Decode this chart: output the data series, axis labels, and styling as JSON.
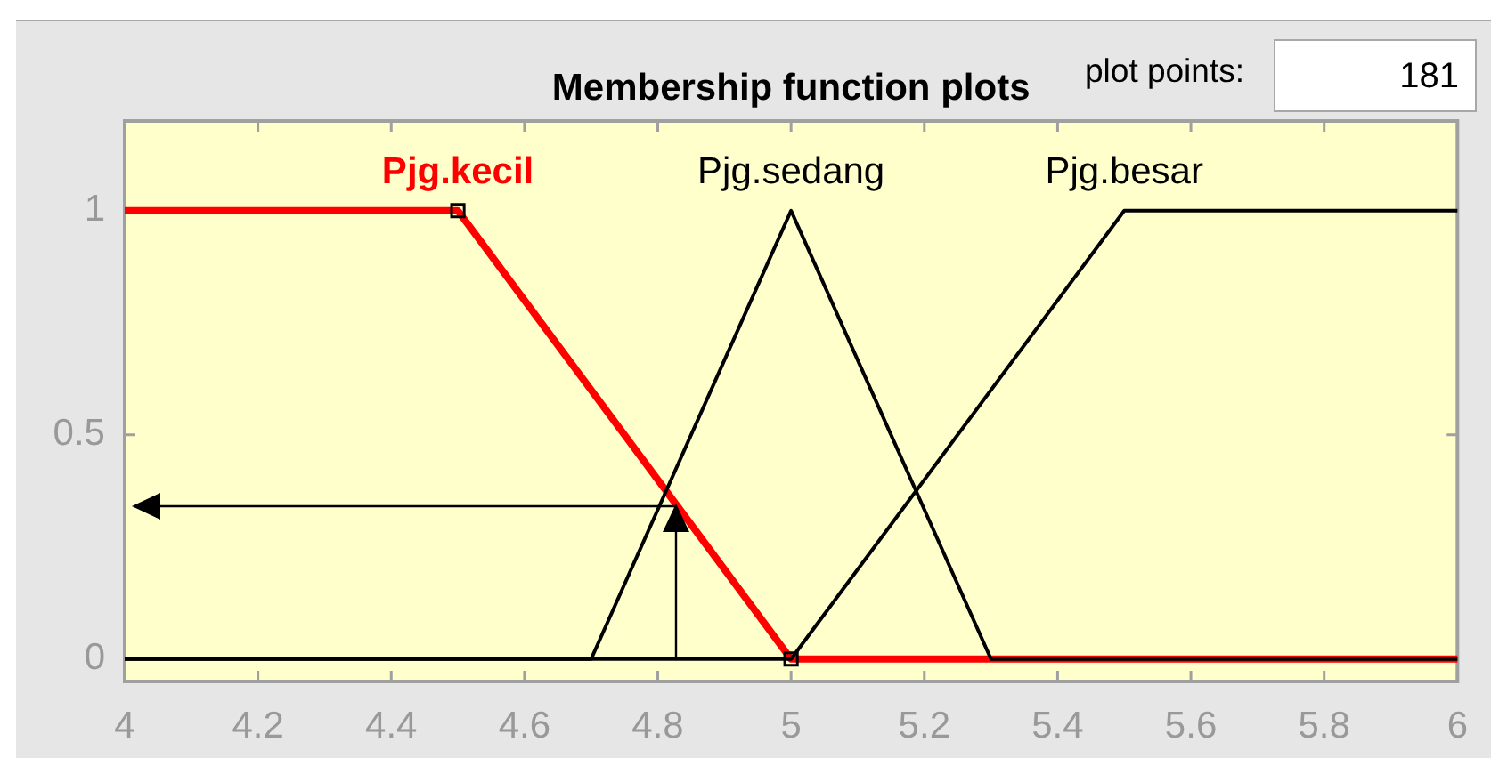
{
  "chart_data": {
    "type": "line",
    "title": "Membership function plots",
    "annotations": [
      "plot points:",
      "181"
    ],
    "xlim": [
      4,
      6
    ],
    "xticks": [
      4,
      4.2,
      4.4,
      4.6,
      4.8,
      5,
      5.2,
      5.4,
      5.6,
      5.8,
      6
    ],
    "ylim": [
      -0.05,
      1.2
    ],
    "yticks": [
      0,
      0.5,
      1
    ],
    "series": [
      {
        "name": "Pjg.kecil",
        "color": "#ff0000",
        "x": [
          4,
          4.5,
          5,
          6
        ],
        "values": [
          1,
          1,
          0,
          0
        ]
      },
      {
        "name": "Pjg.sedang",
        "color": "#000000",
        "x": [
          4,
          4.7,
          5,
          5.3,
          6
        ],
        "values": [
          0,
          0,
          1,
          0,
          0
        ]
      },
      {
        "name": "Pjg.besar",
        "color": "#000000",
        "x": [
          4,
          5,
          5.5,
          6
        ],
        "values": [
          0,
          0,
          1,
          1
        ]
      },
      {
        "type": "scatter",
        "marker": "square",
        "color": "#000000",
        "x": [
          4.5,
          5
        ],
        "values": [
          1,
          0
        ]
      }
    ]
  }
}
